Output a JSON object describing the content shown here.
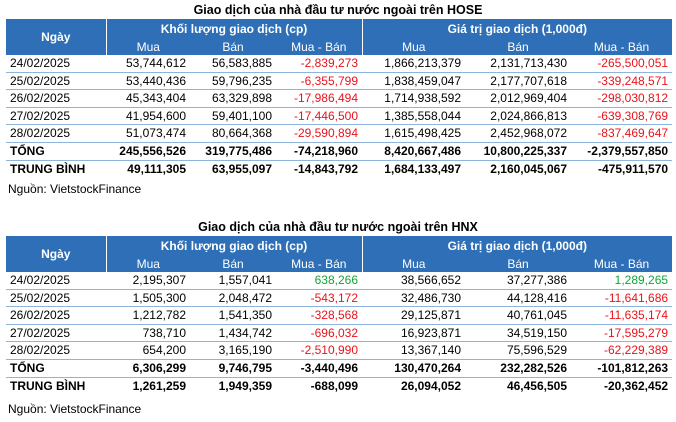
{
  "hose": {
    "title": "Giao dịch của nhà đầu tư nước ngoài trên HOSE",
    "col_date": "Ngày",
    "group_volume": "Khối lượng giao dịch (cp)",
    "group_value": "Giá trị giao dịch (1,000đ)",
    "sub": [
      "Mua",
      "Bán",
      "Mua - Bán",
      "Mua",
      "Bán",
      "Mua - Bán"
    ],
    "rows": [
      {
        "date": "24/02/2025",
        "vol_buy": "53,744,612",
        "vol_sell": "56,583,885",
        "vol_net": "-2,839,273",
        "val_buy": "1,866,213,379",
        "val_sell": "2,131,713,430",
        "val_net": "-265,500,051"
      },
      {
        "date": "25/02/2025",
        "vol_buy": "53,440,436",
        "vol_sell": "59,796,235",
        "vol_net": "-6,355,799",
        "val_buy": "1,838,459,047",
        "val_sell": "2,177,707,618",
        "val_net": "-339,248,571"
      },
      {
        "date": "26/02/2025",
        "vol_buy": "45,343,404",
        "vol_sell": "63,329,898",
        "vol_net": "-17,986,494",
        "val_buy": "1,714,938,592",
        "val_sell": "2,012,969,404",
        "val_net": "-298,030,812"
      },
      {
        "date": "27/02/2025",
        "vol_buy": "41,954,600",
        "vol_sell": "59,401,100",
        "vol_net": "-17,446,500",
        "val_buy": "1,385,558,044",
        "val_sell": "2,024,866,813",
        "val_net": "-639,308,769"
      },
      {
        "date": "28/02/2025",
        "vol_buy": "51,073,474",
        "vol_sell": "80,664,368",
        "vol_net": "-29,590,894",
        "val_buy": "1,615,498,425",
        "val_sell": "2,452,968,072",
        "val_net": "-837,469,647"
      }
    ],
    "total": {
      "label": "TỔNG",
      "vol_buy": "245,556,526",
      "vol_sell": "319,775,486",
      "vol_net": "-74,218,960",
      "val_buy": "8,420,667,486",
      "val_sell": "10,800,225,337",
      "val_net": "-2,379,557,850"
    },
    "avg": {
      "label": "TRUNG BÌNH",
      "vol_buy": "49,111,305",
      "vol_sell": "63,955,097",
      "vol_net": "-14,843,792",
      "val_buy": "1,684,133,497",
      "val_sell": "2,160,045,067",
      "val_net": "-475,911,570"
    },
    "source": "Nguồn: VietstockFinance"
  },
  "hnx": {
    "title": "Giao dịch của nhà đầu tư nước ngoài trên HNX",
    "col_date": "Ngày",
    "group_volume": "Khối lượng giao dịch (cp)",
    "group_value": "Giá trị giao dịch (1,000đ)",
    "sub": [
      "Mua",
      "Bán",
      "Mua - Bán",
      "Mua",
      "Bán",
      "Mua - Bán"
    ],
    "rows": [
      {
        "date": "24/02/2025",
        "vol_buy": "2,195,307",
        "vol_sell": "1,557,041",
        "vol_net": "638,266",
        "val_buy": "38,566,652",
        "val_sell": "37,277,386",
        "val_net": "1,289,265"
      },
      {
        "date": "25/02/2025",
        "vol_buy": "1,505,300",
        "vol_sell": "2,048,472",
        "vol_net": "-543,172",
        "val_buy": "32,486,730",
        "val_sell": "44,128,416",
        "val_net": "-11,641,686"
      },
      {
        "date": "26/02/2025",
        "vol_buy": "1,212,782",
        "vol_sell": "1,541,350",
        "vol_net": "-328,568",
        "val_buy": "29,125,871",
        "val_sell": "40,761,045",
        "val_net": "-11,635,174"
      },
      {
        "date": "27/02/2025",
        "vol_buy": "738,710",
        "vol_sell": "1,434,742",
        "vol_net": "-696,032",
        "val_buy": "16,923,871",
        "val_sell": "34,519,150",
        "val_net": "-17,595,279"
      },
      {
        "date": "28/02/2025",
        "vol_buy": "654,200",
        "vol_sell": "3,165,190",
        "vol_net": "-2,510,990",
        "val_buy": "13,367,140",
        "val_sell": "75,596,529",
        "val_net": "-62,229,389"
      }
    ],
    "total": {
      "label": "TỔNG",
      "vol_buy": "6,306,299",
      "vol_sell": "9,746,795",
      "vol_net": "-3,440,496",
      "val_buy": "130,470,264",
      "val_sell": "232,282,526",
      "val_net": "-101,812,263"
    },
    "avg": {
      "label": "TRUNG BÌNH",
      "vol_buy": "1,261,259",
      "vol_sell": "1,949,359",
      "vol_net": "-688,099",
      "val_buy": "26,094,052",
      "val_sell": "46,456,505",
      "val_net": "-20,362,452"
    },
    "source": "Nguồn: VietstockFinance"
  },
  "colors": {
    "header_bg": "#2e6fb7",
    "negative": "#e8141b",
    "positive": "#13a538",
    "row_rule": "#8fb4dc"
  }
}
